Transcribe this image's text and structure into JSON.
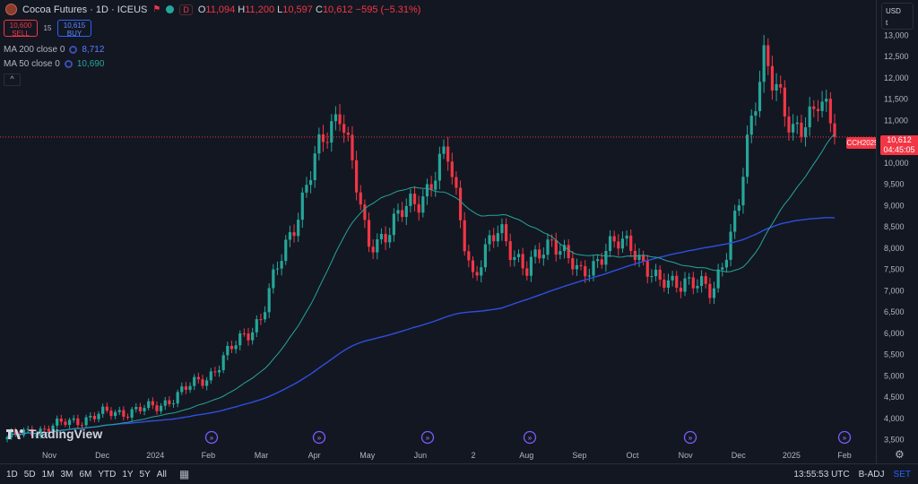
{
  "header": {
    "symbol_title": "Cocoa Futures · 1D · ICEUS",
    "d_badge": "D",
    "ohlc_o": "11,094",
    "ohlc_h": "11,200",
    "ohlc_l": "10,597",
    "ohlc_c": "10,612",
    "change": "−595 (−5.31%)"
  },
  "trade": {
    "sell_price": "10,600",
    "sell_label": "SELL",
    "spread": "15",
    "buy_price": "10,615",
    "buy_label": "BUY"
  },
  "indicators": [
    {
      "label": "MA 200 close 0",
      "value": "8,712",
      "color": "#5b7cff"
    },
    {
      "label": "MA 50 close 0",
      "value": "10,690",
      "color": "#26a69a"
    }
  ],
  "collapse_label": "^",
  "logo_text": "TradingView",
  "currency": {
    "unit": "USD",
    "sub": "t"
  },
  "price_tag": {
    "symbol": "CCH2025",
    "price": "10,612",
    "countdown": "04:45:05"
  },
  "bottom_bar": {
    "timeframes": [
      "1D",
      "5D",
      "1M",
      "3M",
      "6M",
      "YTD",
      "1Y",
      "5Y",
      "All"
    ],
    "time": "13:55:53 UTC",
    "adj": "B-ADJ",
    "set": "SET"
  },
  "colors": {
    "up": "#26a69a",
    "down": "#f23645",
    "ma200": "#2f4fe0",
    "ma50": "#26a69a",
    "bg": "#131722"
  },
  "chart_data": {
    "type": "candlestick",
    "title": "Cocoa Futures · 1D · ICEUS",
    "xlabel": "",
    "ylabel": "",
    "ylim": [
      3300,
      13200
    ],
    "y_ticks": [
      3500,
      4000,
      4500,
      5000,
      5500,
      6000,
      6500,
      7000,
      7500,
      8000,
      8500,
      9000,
      9500,
      10000,
      10500,
      11000,
      11500,
      12000,
      12500,
      13000
    ],
    "x_ticks": [
      "Nov",
      "Dec",
      "2024",
      "Feb",
      "Mar",
      "Apr",
      "May",
      "Jun",
      "2",
      "Aug",
      "Sep",
      "Oct",
      "Nov",
      "Dec",
      "2025",
      "Feb"
    ],
    "last_price": 10612,
    "close_path": [
      [
        "Nov",
        3550
      ],
      [
        "Dec",
        4100
      ],
      [
        "2024",
        4250
      ],
      [
        "Feb",
        5000
      ],
      [
        "Mar",
        6400
      ],
      [
        "Apr",
        10000
      ],
      [
        "Apr",
        11400
      ],
      [
        "May",
        8000
      ],
      [
        "Jun",
        9200
      ],
      [
        "Jun",
        10200
      ],
      [
        "2",
        7300
      ],
      [
        "2",
        8500
      ],
      [
        "Aug",
        7400
      ],
      [
        "Aug",
        8300
      ],
      [
        "Sep",
        7300
      ],
      [
        "Sep",
        8000
      ],
      [
        "Oct",
        8100
      ],
      [
        "Oct",
        7100
      ],
      [
        "Nov",
        7300
      ],
      [
        "Nov",
        6900
      ],
      [
        "Dec",
        9000
      ],
      [
        "Dec",
        12800
      ],
      [
        "2025",
        10500
      ],
      [
        "2025",
        11600
      ],
      [
        "Feb",
        10612
      ]
    ],
    "series": [
      {
        "name": "MA 200 close 0",
        "last": 8712
      },
      {
        "name": "MA 50 close 0",
        "last": 10690
      }
    ],
    "grid": false,
    "legend": "top-left"
  }
}
